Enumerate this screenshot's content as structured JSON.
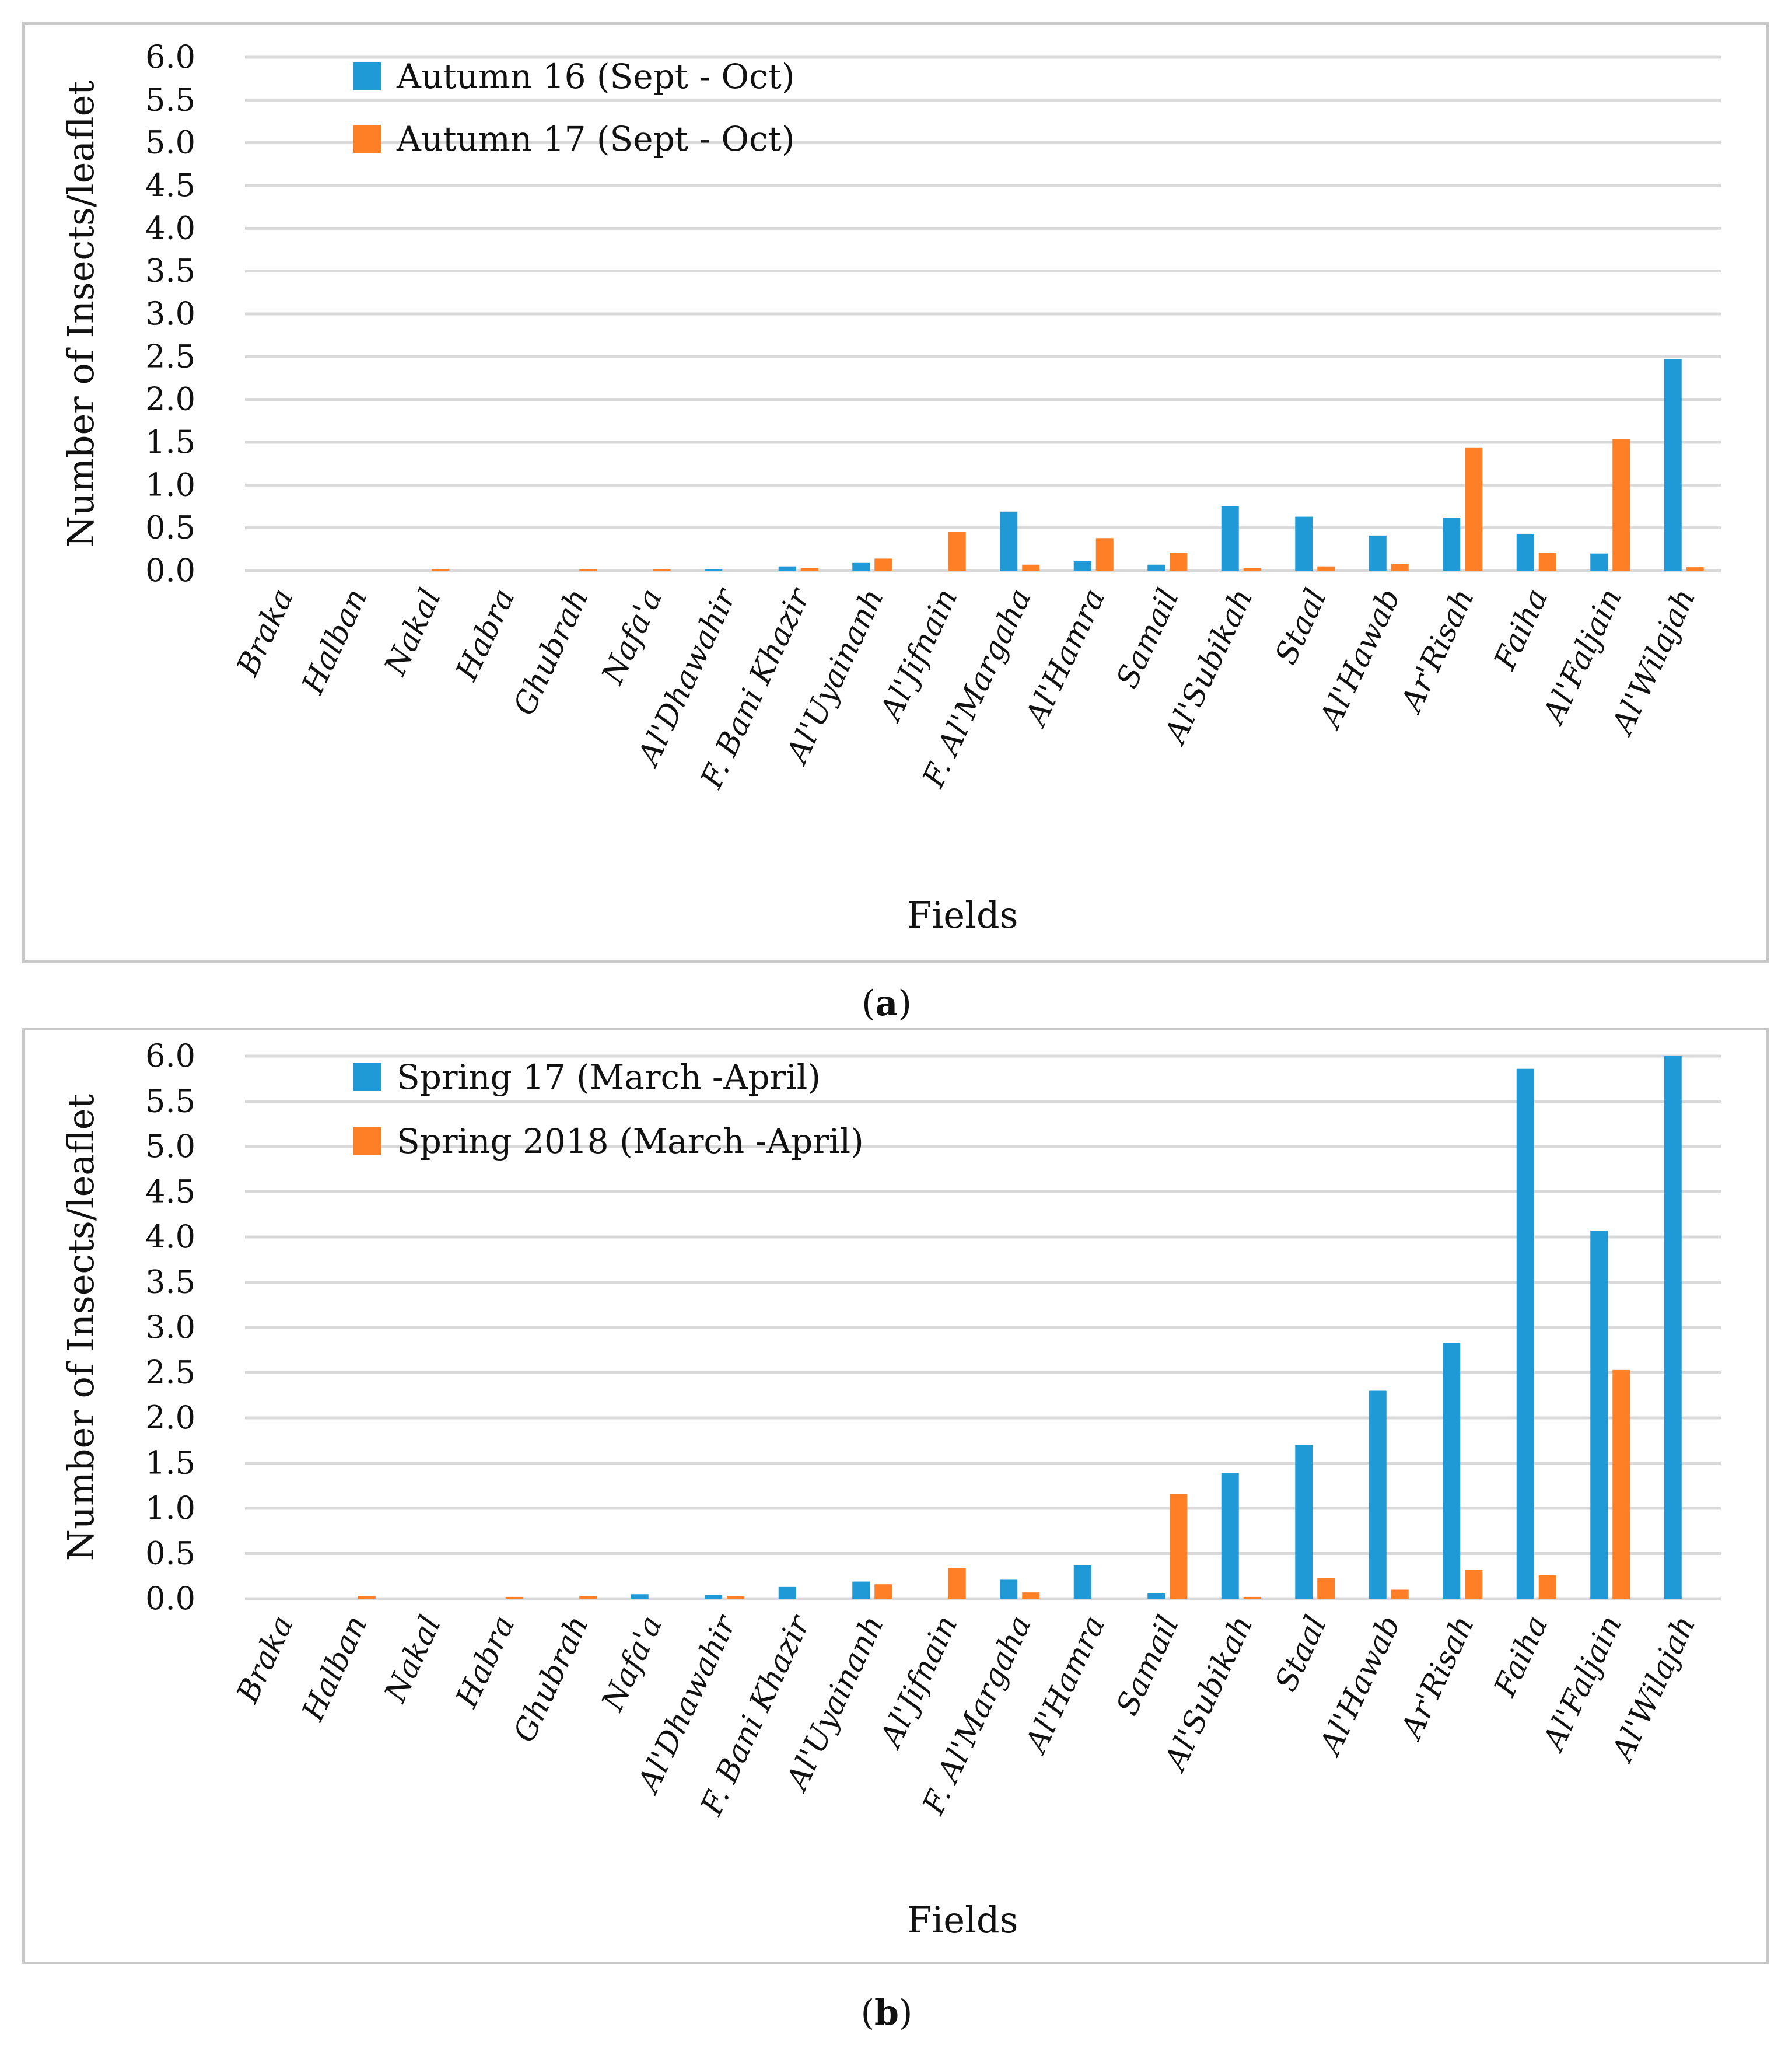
{
  "chart_data": [
    {
      "type": "bar",
      "panel_label": "a",
      "xlabel": "Fields",
      "ylabel": "Number of Insects/leaflet",
      "ylim": [
        0,
        6
      ],
      "yticks": [
        "0.0",
        "0.5",
        "1.0",
        "1.5",
        "2.0",
        "2.5",
        "3.0",
        "3.5",
        "4.0",
        "4.5",
        "5.0",
        "5.5",
        "6.0"
      ],
      "grid": true,
      "legend_position": "top-left",
      "categories": [
        "Braka",
        "Halban",
        "Nakal",
        "Habra",
        "Ghubrah",
        "Nafa'a",
        "Al'Dhawahir",
        "F. Bani Khazir",
        "Al'Uyainanh",
        "Al'Jifnain",
        "F. Al'Margaha",
        "Al'Hamra",
        "Samail",
        "Al'Subikah",
        "Staal",
        "Al'Hawab",
        "Ar'Risah",
        "Faiha",
        "Al'Faljain",
        "Al'Wilajah"
      ],
      "series": [
        {
          "name": "Autumn 16 (Sept - Oct)",
          "color": "#1f9ad6",
          "values": [
            0,
            0,
            0,
            0,
            0,
            0,
            0.02,
            0.05,
            0.09,
            0,
            0.69,
            0.11,
            0.07,
            0.75,
            0.63,
            0.41,
            0.62,
            0.43,
            0.2,
            2.47
          ]
        },
        {
          "name": "Autumn 17 (Sept - Oct)",
          "color": "#ff7f27",
          "values": [
            0,
            0,
            0.02,
            0,
            0.02,
            0.02,
            0,
            0.03,
            0.14,
            0.45,
            0.07,
            0.38,
            0.21,
            0.03,
            0.05,
            0.08,
            1.44,
            0.21,
            1.54,
            0.04
          ]
        }
      ]
    },
    {
      "type": "bar",
      "panel_label": "b",
      "xlabel": "Fields",
      "ylabel": "Number of Insects/leaflet",
      "ylim": [
        0,
        6
      ],
      "yticks": [
        "0.0",
        "0.5",
        "1.0",
        "1.5",
        "2.0",
        "2.5",
        "3.0",
        "3.5",
        "4.0",
        "4.5",
        "5.0",
        "5.5",
        "6.0"
      ],
      "grid": true,
      "legend_position": "top-left",
      "categories": [
        "Braka",
        "Halban",
        "Nakal",
        "Habra",
        "Ghubrah",
        "Nafa'a",
        "Al'Dhawahir",
        "F. Bani Khazir",
        "Al'Uyainanh",
        "Al'Jifnain",
        "F. Al'Margaha",
        "Al'Hamra",
        "Samail",
        "Al'Subikah",
        "Staal",
        "Al'Hawab",
        "Ar'Risah",
        "Faiha",
        "Al'Faljain",
        "Al'Wilajah"
      ],
      "series": [
        {
          "name": "Spring 17 (March -April)",
          "color": "#1f9ad6",
          "values": [
            0,
            0,
            0,
            0,
            0,
            0.05,
            0.04,
            0.13,
            0.19,
            0,
            0.21,
            0.37,
            0.06,
            1.39,
            1.7,
            2.3,
            2.83,
            5.86,
            4.07,
            6.0
          ]
        },
        {
          "name": "Spring 2018 (March -April)",
          "color": "#ff7f27",
          "values": [
            0,
            0.03,
            0,
            0.02,
            0.03,
            0,
            0.03,
            0,
            0.16,
            0.34,
            0.07,
            0,
            1.16,
            0.02,
            0.23,
            0.1,
            0.32,
            0.26,
            2.53,
            0
          ]
        }
      ]
    }
  ]
}
